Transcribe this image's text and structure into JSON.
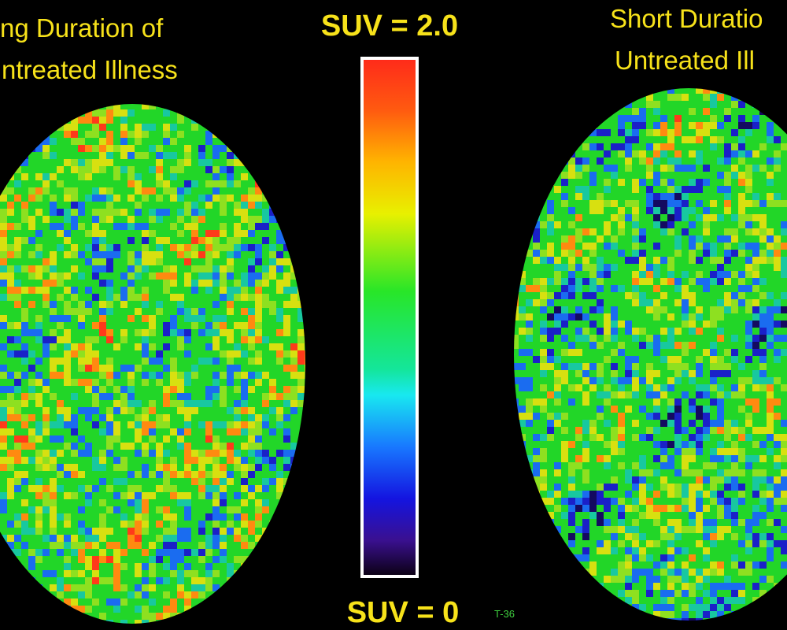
{
  "left_label": {
    "line1": "ng Duration of",
    "line2": "ntreated Illness"
  },
  "right_label": {
    "line1": "Short Duratio",
    "line2": "Untreated Ill"
  },
  "scale": {
    "max_label": "SUV = 2.0",
    "min_label": "SUV = 0"
  },
  "marker": "T-36"
}
